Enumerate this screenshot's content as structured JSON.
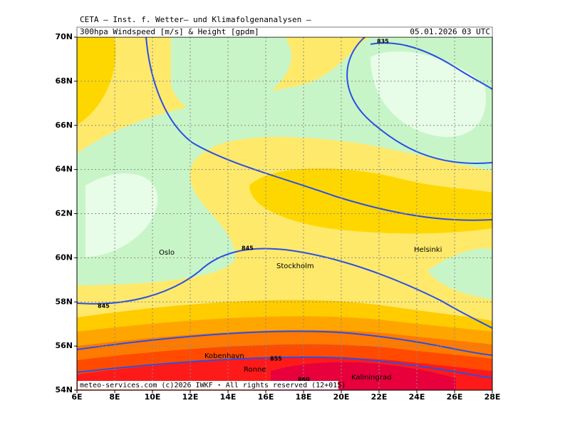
{
  "map": {
    "header": {
      "line1": "CETA – Inst. f. Wetter– und Klimafolgenanalysen –",
      "product": "300hpa Windspeed [m/s] & Height [gpdm]",
      "valid": "05.01.2026 03 UTC"
    },
    "lat_labels": [
      "70N",
      "68N",
      "66N",
      "64N",
      "62N",
      "60N",
      "58N",
      "56N",
      "54N"
    ],
    "lon_labels": [
      "6E",
      "8E",
      "10E",
      "12E",
      "14E",
      "16E",
      "18E",
      "20E",
      "22E",
      "24E",
      "26E",
      "28E"
    ],
    "cities": [
      "Oslo",
      "Stockholm",
      "Helsinki",
      "Kobenhavn",
      "Ronne",
      "Kaliningrad"
    ],
    "contour_labels": [
      "835",
      "845",
      "845",
      "855",
      "860"
    ],
    "footer": "meteo-services.com (c)2026 IWKF ⋆ All rights reserved (12+015)"
  }
}
